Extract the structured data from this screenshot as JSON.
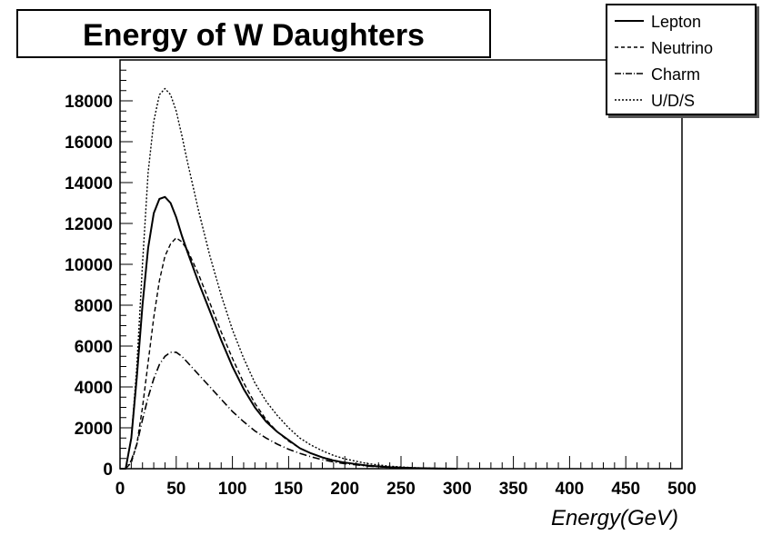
{
  "chart_data": {
    "type": "line",
    "title": "Energy of W Daughters",
    "xlabel": "Energy(GeV)",
    "ylabel": "",
    "xlim": [
      0,
      500
    ],
    "ylim": [
      0,
      20000
    ],
    "grid": false,
    "legend_position": "top-right",
    "x_ticks": [
      "0",
      "50",
      "100",
      "150",
      "200",
      "250",
      "300",
      "350",
      "400",
      "450",
      "500"
    ],
    "y_ticks": [
      "0",
      "2000",
      "4000",
      "6000",
      "8000",
      "10000",
      "12000",
      "14000",
      "16000",
      "18000"
    ],
    "x": [
      0,
      5,
      10,
      15,
      20,
      25,
      30,
      35,
      40,
      45,
      50,
      55,
      60,
      70,
      80,
      90,
      100,
      110,
      120,
      130,
      140,
      150,
      160,
      170,
      180,
      190,
      200,
      220,
      240,
      260,
      280,
      300
    ],
    "series": [
      {
        "name": "Lepton",
        "dash": "solid",
        "values": [
          0,
          0,
          1500,
          4500,
          8000,
          10800,
          12500,
          13200,
          13300,
          13000,
          12300,
          11400,
          10600,
          9100,
          7700,
          6300,
          5000,
          3900,
          3000,
          2300,
          1800,
          1400,
          1000,
          750,
          550,
          400,
          300,
          150,
          70,
          30,
          10,
          0
        ]
      },
      {
        "name": "Neutrino",
        "dash": "dashed",
        "values": [
          0,
          0,
          300,
          1200,
          3000,
          5200,
          7400,
          9200,
          10400,
          11000,
          11300,
          11100,
          10700,
          9500,
          8100,
          6700,
          5400,
          4200,
          3200,
          2400,
          1800,
          1350,
          1000,
          750,
          560,
          420,
          300,
          160,
          80,
          40,
          15,
          0
        ]
      },
      {
        "name": "Charm",
        "dash": "dashdot",
        "values": [
          0,
          0,
          400,
          1200,
          2400,
          3500,
          4400,
          5100,
          5500,
          5700,
          5700,
          5500,
          5200,
          4600,
          4000,
          3400,
          2800,
          2300,
          1850,
          1500,
          1200,
          950,
          750,
          580,
          440,
          330,
          250,
          130,
          60,
          25,
          10,
          0
        ]
      },
      {
        "name": "U/D/S",
        "dash": "dotted",
        "values": [
          0,
          0,
          1500,
          5000,
          10000,
          14500,
          17000,
          18300,
          18600,
          18300,
          17500,
          16300,
          15000,
          12600,
          10400,
          8500,
          6800,
          5400,
          4200,
          3300,
          2600,
          2000,
          1500,
          1150,
          880,
          650,
          480,
          250,
          120,
          50,
          20,
          0
        ]
      }
    ]
  }
}
